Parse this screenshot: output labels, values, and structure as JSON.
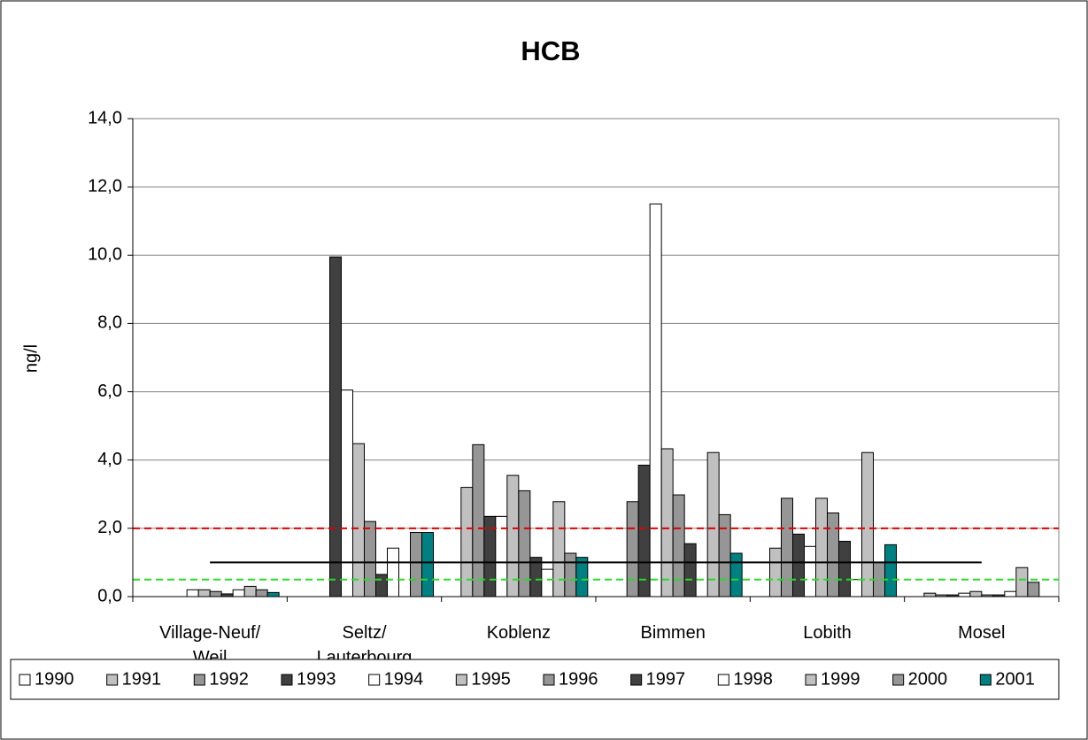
{
  "chart_data": {
    "type": "bar",
    "title": "HCB",
    "y_label": "ng/l",
    "categories": [
      "Village-Neuf/\nWeil",
      "Seltz/\nLauterbourg",
      "Koblenz",
      "Bimmen",
      "Lobith",
      "Mosel"
    ],
    "series": [
      {
        "name": "1990",
        "color": "#ffffff",
        "values": [
          null,
          null,
          null,
          null,
          null,
          null
        ]
      },
      {
        "name": "1991",
        "color": "#c0c0c0",
        "values": [
          null,
          null,
          3.2,
          null,
          1.42,
          0.1
        ]
      },
      {
        "name": "1992",
        "color": "#969696",
        "values": [
          null,
          null,
          4.45,
          2.78,
          2.88,
          0.05
        ]
      },
      {
        "name": "1993",
        "color": "#404040",
        "values": [
          null,
          9.95,
          2.35,
          3.85,
          1.83,
          0.05
        ]
      },
      {
        "name": "1994",
        "color": "#ffffff",
        "values": [
          0.2,
          6.05,
          2.35,
          11.5,
          1.47,
          0.1
        ]
      },
      {
        "name": "1995",
        "color": "#c0c0c0",
        "values": [
          0.2,
          4.48,
          3.55,
          4.33,
          2.88,
          0.15
        ]
      },
      {
        "name": "1996",
        "color": "#969696",
        "values": [
          0.15,
          2.2,
          3.1,
          2.98,
          2.45,
          0.05
        ]
      },
      {
        "name": "1997",
        "color": "#404040",
        "values": [
          0.08,
          0.65,
          1.15,
          1.55,
          1.62,
          0.05
        ]
      },
      {
        "name": "1998",
        "color": "#ffffff",
        "values": [
          0.2,
          1.42,
          0.8,
          null,
          0.5,
          0.15
        ]
      },
      {
        "name": "1999",
        "color": "#c0c0c0",
        "values": [
          0.3,
          null,
          2.78,
          4.22,
          4.22,
          0.85
        ]
      },
      {
        "name": "2000",
        "color": "#969696",
        "values": [
          0.2,
          1.88,
          1.27,
          2.4,
          1.0,
          0.42
        ]
      },
      {
        "name": "2001",
        "color": "#008080",
        "values": [
          0.12,
          1.88,
          1.15,
          1.27,
          1.52,
          null
        ]
      }
    ],
    "reference_lines": [
      {
        "value": 2.0,
        "color": "#e00000",
        "dashed": true
      },
      {
        "value": 1.0,
        "color": "#000000",
        "dashed": false
      },
      {
        "value": 0.5,
        "color": "#22dd22",
        "dashed": true
      }
    ],
    "ylim": [
      0,
      14
    ],
    "yticks": [
      {
        "value": 0,
        "label": "0,0"
      },
      {
        "value": 2,
        "label": "2,0"
      },
      {
        "value": 4,
        "label": "4,0"
      },
      {
        "value": 6,
        "label": "6,0"
      },
      {
        "value": 8,
        "label": "8,0"
      },
      {
        "value": 10,
        "label": "10,0"
      },
      {
        "value": 12,
        "label": "12,0"
      },
      {
        "value": 14,
        "label": "14,0"
      }
    ],
    "grid": true,
    "legend": "bottom"
  }
}
